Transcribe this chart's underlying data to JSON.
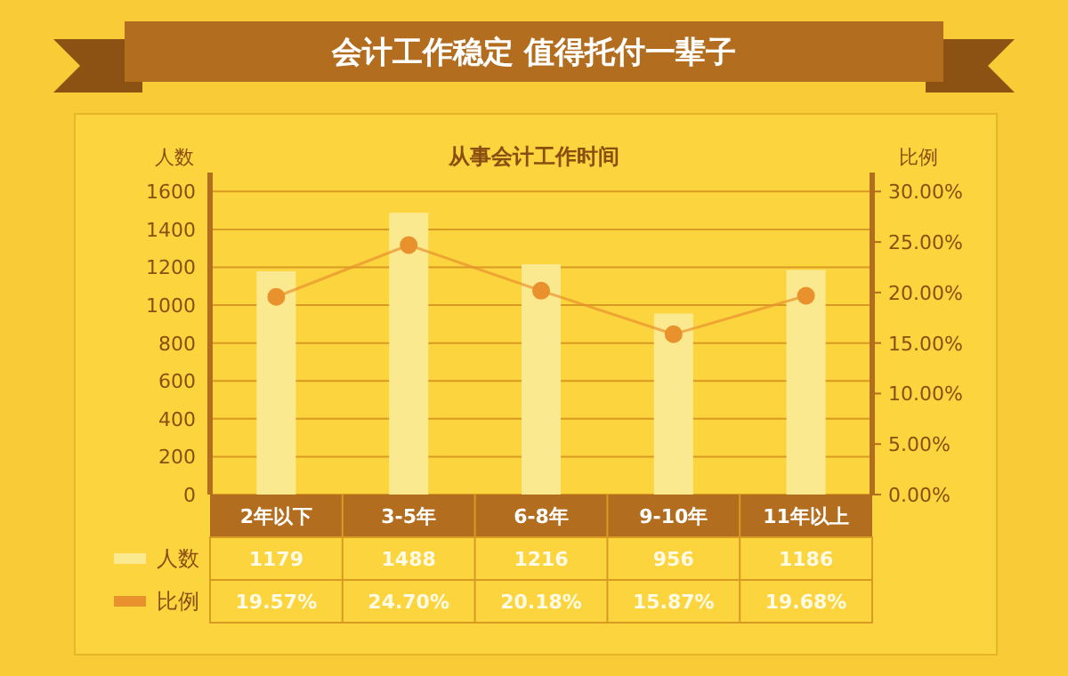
{
  "chart_data": {
    "type": "bar",
    "title": "会计工作稳定  值得托付一辈子",
    "subtitle": "从事会计工作时间",
    "ylabel": "人数",
    "y2label": "比例",
    "categories": [
      "2年以下",
      "3-5年",
      "6-8年",
      "9-10年",
      "11年以上"
    ],
    "series": [
      {
        "name": "人数",
        "color": "#fbe98f",
        "values": [
          1179,
          1488,
          1216,
          956,
          1186
        ],
        "value_labels": [
          "1179",
          "1488",
          "1216",
          "956",
          "1186"
        ]
      },
      {
        "name": "比例",
        "type": "line",
        "axis": "y2",
        "color": "#e8912d",
        "values": [
          19.57,
          24.7,
          20.18,
          15.87,
          19.68
        ],
        "value_labels": [
          "19.57%",
          "24.70%",
          "20.18%",
          "15.87%",
          "19.68%"
        ]
      }
    ],
    "ylim": [
      0,
      1700
    ],
    "yticks": [
      0,
      200,
      400,
      600,
      800,
      1000,
      1200,
      1400,
      1600
    ],
    "y2lim": [
      0,
      31.875
    ],
    "y2ticks": [
      {
        "value": 0,
        "label": "0.00%"
      },
      {
        "value": 5,
        "label": "5.00%"
      },
      {
        "value": 10,
        "label": "10.00%"
      },
      {
        "value": 15,
        "label": "15.00%"
      },
      {
        "value": 20,
        "label": "20.00%"
      },
      {
        "value": 25,
        "label": "25.00%"
      },
      {
        "value": 30,
        "label": "30.00%"
      }
    ],
    "grid": "y",
    "legend": "bottom left",
    "marker": "circle"
  }
}
